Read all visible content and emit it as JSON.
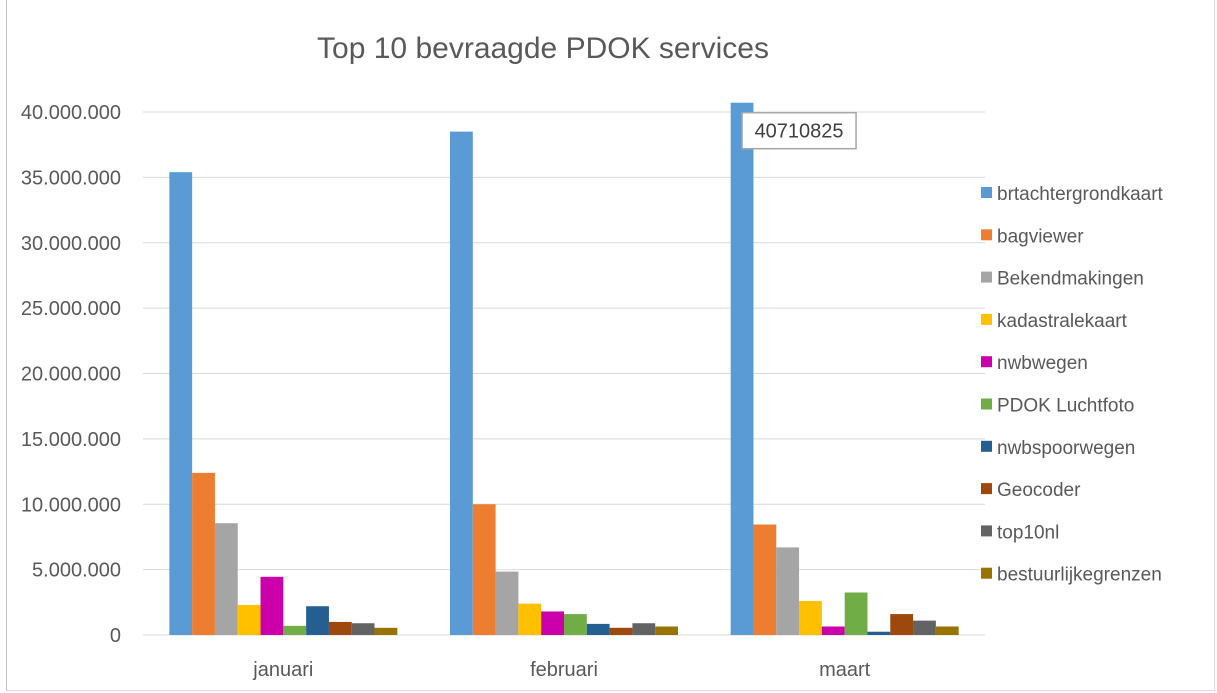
{
  "chart_data": {
    "type": "bar",
    "title": "Top 10 bevraagde PDOK services",
    "xlabel": "",
    "ylabel": "",
    "categories": [
      "januari",
      "februari",
      "maart"
    ],
    "ylim": [
      0,
      40000000
    ],
    "y_ticks": [
      0,
      5000000,
      10000000,
      15000000,
      20000000,
      25000000,
      30000000,
      35000000,
      40000000
    ],
    "y_tick_labels": [
      "0",
      "5.000.000",
      "10.000.000",
      "15.000.000",
      "20.000.000",
      "25.000.000",
      "30.000.000",
      "35.000.000",
      "40.000.000"
    ],
    "grid": true,
    "legend_position": "right",
    "series": [
      {
        "name": "brtachtergrondkaart",
        "color": "#5B9BD5",
        "values": [
          35400000,
          38500000,
          40710825
        ]
      },
      {
        "name": "bagviewer",
        "color": "#ED7D31",
        "values": [
          12400000,
          10000000,
          8450000
        ]
      },
      {
        "name": "Bekendmakingen",
        "color": "#A5A5A5",
        "values": [
          8550000,
          4850000,
          6700000
        ]
      },
      {
        "name": "kadastralekaart",
        "color": "#FFC000",
        "values": [
          2300000,
          2400000,
          2600000
        ]
      },
      {
        "name": "nwbwegen",
        "color": "#CC00AA",
        "values": [
          4450000,
          1800000,
          650000
        ]
      },
      {
        "name": "PDOK Luchtfoto",
        "color": "#70AD47",
        "values": [
          700000,
          1600000,
          3250000
        ]
      },
      {
        "name": "nwbspoorwegen",
        "color": "#255E91",
        "values": [
          2200000,
          850000,
          250000
        ]
      },
      {
        "name": "Geocoder",
        "color": "#9E480E",
        "values": [
          1000000,
          550000,
          1600000
        ]
      },
      {
        "name": "top10nl",
        "color": "#636363",
        "values": [
          900000,
          900000,
          1100000
        ]
      },
      {
        "name": "bestuurlijkegrenzen",
        "color": "#997300",
        "values": [
          550000,
          650000,
          650000
        ]
      }
    ],
    "annotations": [
      {
        "series": "brtachtergrondkaart",
        "category": "maart",
        "text": "40710825"
      }
    ]
  }
}
